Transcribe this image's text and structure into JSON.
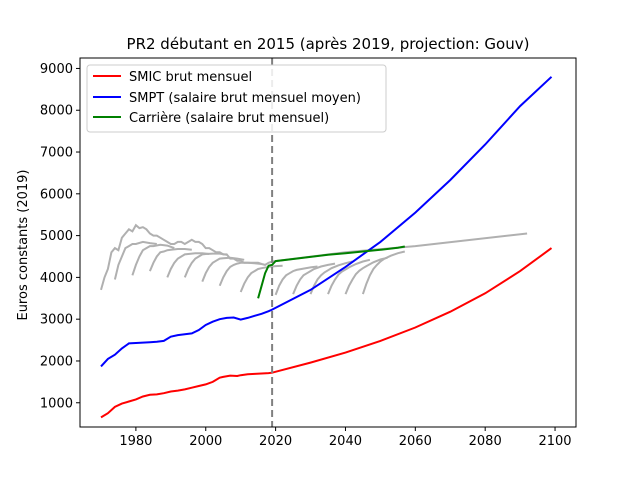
{
  "chart_data": {
    "type": "line",
    "title": "PR2 débutant en 2015  (après 2019, projection: Gouv)",
    "xlabel": "",
    "ylabel": "Euros constants (2019)",
    "xlim": [
      1964,
      2106
    ],
    "ylim": [
      420,
      9250
    ],
    "xticks": [
      1980,
      2000,
      2020,
      2040,
      2060,
      2080,
      2100
    ],
    "yticks": [
      1000,
      2000,
      3000,
      4000,
      5000,
      6000,
      7000,
      8000,
      9000
    ],
    "vline": {
      "x": 2019,
      "style": "dashed",
      "color": "#808080"
    },
    "grid": false,
    "legend": "top-left",
    "series": [
      {
        "name": "SMIC brut mensuel",
        "color": "#ff0000",
        "x": [
          1970,
          1972,
          1974,
          1976,
          1978,
          1980,
          1982,
          1984,
          1986,
          1988,
          1990,
          1992,
          1994,
          1996,
          1998,
          2000,
          2002,
          2004,
          2005,
          2007,
          2009,
          2010,
          2012,
          2014,
          2016,
          2018,
          2019,
          2030,
          2040,
          2050,
          2060,
          2070,
          2080,
          2090,
          2099
        ],
        "y": [
          650,
          750,
          900,
          980,
          1030,
          1080,
          1150,
          1190,
          1200,
          1230,
          1270,
          1290,
          1320,
          1360,
          1400,
          1440,
          1500,
          1600,
          1620,
          1650,
          1640,
          1660,
          1680,
          1690,
          1700,
          1710,
          1720,
          1960,
          2200,
          2480,
          2800,
          3180,
          3620,
          4150,
          4700
        ]
      },
      {
        "name": "SMPT (salaire brut mensuel moyen)",
        "color": "#0000ff",
        "x": [
          1970,
          1972,
          1974,
          1976,
          1978,
          1980,
          1982,
          1984,
          1986,
          1988,
          1990,
          1992,
          1994,
          1996,
          1998,
          2000,
          2002,
          2004,
          2006,
          2008,
          2010,
          2012,
          2014,
          2016,
          2018,
          2019,
          2030,
          2040,
          2050,
          2060,
          2070,
          2080,
          2090,
          2099
        ],
        "y": [
          1870,
          2050,
          2150,
          2300,
          2420,
          2430,
          2440,
          2450,
          2460,
          2480,
          2580,
          2620,
          2640,
          2660,
          2740,
          2860,
          2940,
          3000,
          3030,
          3040,
          2990,
          3030,
          3080,
          3130,
          3190,
          3230,
          3700,
          4250,
          4850,
          5550,
          6330,
          7180,
          8100,
          8800
        ]
      },
      {
        "name": "Carrière (salaire brut mensuel)",
        "color": "#008000",
        "x": [
          2015,
          2016,
          2017,
          2018,
          2019,
          2020,
          2025,
          2030,
          2035,
          2040,
          2045,
          2050,
          2055,
          2057
        ],
        "y": [
          3500,
          3800,
          4100,
          4280,
          4300,
          4390,
          4440,
          4490,
          4540,
          4580,
          4620,
          4660,
          4710,
          4740
        ]
      }
    ],
    "grey_lines": [
      {
        "x": [
          1970,
          1971,
          1972,
          1973,
          1974,
          1975,
          1976,
          1977,
          1978,
          1979,
          1980,
          1981,
          1982,
          1983,
          1984,
          1985,
          1986,
          1987,
          1988,
          1989,
          1990,
          1991,
          1992,
          1993,
          1994,
          1995,
          1996,
          1997,
          1998,
          1999,
          2000,
          2001,
          2002,
          2003,
          2004,
          2005,
          2006,
          2007,
          2008,
          2009,
          2010,
          2011,
          2012,
          2013,
          2014,
          2015,
          2016,
          2017,
          2018,
          2019
        ],
        "y": [
          3700,
          4000,
          4200,
          4600,
          4700,
          4650,
          4950,
          5050,
          5150,
          5100,
          5250,
          5180,
          5200,
          5150,
          5050,
          5000,
          5000,
          4950,
          4900,
          4850,
          4800,
          4800,
          4850,
          4850,
          4800,
          4850,
          4900,
          4850,
          4850,
          4800,
          4700,
          4700,
          4650,
          4600,
          4600,
          4550,
          4550,
          4450,
          4450,
          4400,
          4400,
          4350,
          4350,
          4350,
          4350,
          4350,
          4320,
          4300,
          4350,
          4380
        ]
      },
      {
        "x": [
          2019,
          2040,
          2060,
          2092
        ],
        "y": [
          4380,
          4600,
          4750,
          5050
        ]
      },
      {
        "x": [
          1974,
          1975,
          1976,
          1977,
          1978,
          1979,
          1980,
          1982,
          1984,
          1986
        ],
        "y": [
          3950,
          4300,
          4500,
          4700,
          4750,
          4800,
          4800,
          4850,
          4820,
          4800
        ]
      },
      {
        "x": [
          1979,
          1980,
          1981,
          1982,
          1983,
          1984,
          1985,
          1987,
          1989,
          1991
        ],
        "y": [
          4050,
          4300,
          4500,
          4650,
          4700,
          4750,
          4750,
          4780,
          4760,
          4700
        ]
      },
      {
        "x": [
          1984,
          1985,
          1986,
          1987,
          1988,
          1989,
          1990,
          1992,
          1994,
          1996
        ],
        "y": [
          4150,
          4350,
          4500,
          4600,
          4620,
          4650,
          4660,
          4680,
          4680,
          4660
        ]
      },
      {
        "x": [
          1989,
          1990,
          1991,
          1992,
          1993,
          1994,
          1995,
          1997,
          1999,
          2001
        ],
        "y": [
          4000,
          4200,
          4350,
          4450,
          4500,
          4550,
          4560,
          4580,
          4580,
          4560
        ]
      },
      {
        "x": [
          1994,
          1995,
          1996,
          1997,
          1998,
          1999,
          2000,
          2002,
          2004,
          2006
        ],
        "y": [
          4000,
          4200,
          4350,
          4450,
          4500,
          4550,
          4560,
          4570,
          4570,
          4540
        ]
      },
      {
        "x": [
          1999,
          2000,
          2001,
          2002,
          2003,
          2004,
          2005,
          2007,
          2009,
          2011
        ],
        "y": [
          3900,
          4100,
          4250,
          4350,
          4400,
          4450,
          4460,
          4470,
          4450,
          4420
        ]
      },
      {
        "x": [
          2004,
          2005,
          2006,
          2007,
          2008,
          2009,
          2010,
          2012,
          2014,
          2016
        ],
        "y": [
          3800,
          4000,
          4150,
          4250,
          4300,
          4330,
          4350,
          4350,
          4340,
          4320
        ]
      },
      {
        "x": [
          2010,
          2011,
          2012,
          2013,
          2014,
          2015,
          2016,
          2018,
          2020,
          2022
        ],
        "y": [
          3650,
          3850,
          4000,
          4100,
          4150,
          4200,
          4220,
          4250,
          4270,
          4280
        ]
      },
      {
        "x": [
          2020,
          2021,
          2022,
          2023,
          2024,
          2025,
          2026,
          2028,
          2030,
          2032
        ],
        "y": [
          3580,
          3800,
          3950,
          4050,
          4100,
          4150,
          4180,
          4210,
          4240,
          4260
        ]
      },
      {
        "x": [
          2025,
          2026,
          2027,
          2028,
          2029,
          2030,
          2031,
          2033,
          2035,
          2037
        ],
        "y": [
          3600,
          3800,
          3950,
          4050,
          4100,
          4150,
          4200,
          4260,
          4300,
          4330
        ]
      },
      {
        "x": [
          2030,
          2031,
          2032,
          2033,
          2034,
          2035,
          2036,
          2038,
          2040,
          2042
        ],
        "y": [
          3600,
          3800,
          3950,
          4050,
          4120,
          4170,
          4220,
          4290,
          4340,
          4380
        ]
      },
      {
        "x": [
          2035,
          2036,
          2037,
          2038,
          2039,
          2040,
          2041,
          2043,
          2045,
          2047
        ],
        "y": [
          3600,
          3800,
          3950,
          4070,
          4140,
          4190,
          4240,
          4320,
          4380,
          4420
        ]
      },
      {
        "x": [
          2040,
          2041,
          2042,
          2043,
          2044,
          2045,
          2046,
          2048,
          2050,
          2052
        ],
        "y": [
          3600,
          3800,
          3950,
          4080,
          4160,
          4220,
          4270,
          4360,
          4430,
          4470
        ]
      },
      {
        "x": [
          2045,
          2046,
          2047,
          2048,
          2049,
          2050,
          2051,
          2053,
          2055,
          2057
        ],
        "y": [
          3600,
          3850,
          4050,
          4200,
          4300,
          4380,
          4440,
          4520,
          4580,
          4620
        ]
      }
    ]
  }
}
